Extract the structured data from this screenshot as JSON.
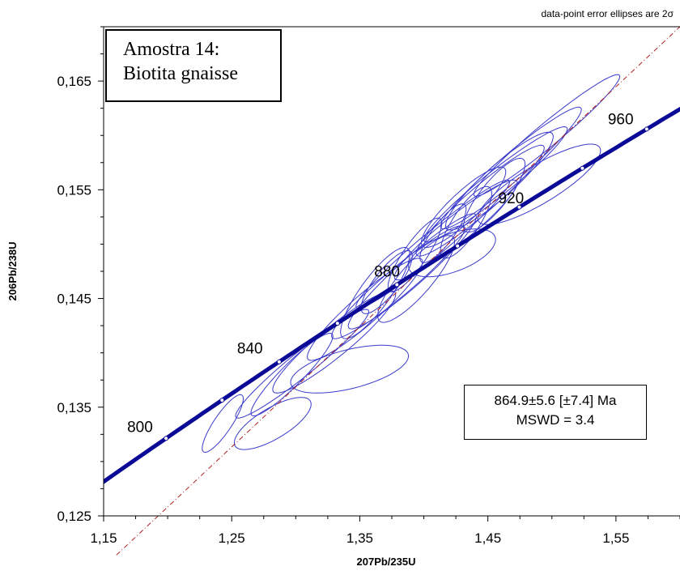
{
  "chart_data": {
    "type": "scatter",
    "subtype": "concordia",
    "note": "data-point error ellipses are 2σ",
    "xlabel": "207Pb/235U",
    "ylabel": "206Pb/238U",
    "xlim": [
      1.15,
      1.6
    ],
    "ylim": [
      0.125,
      0.17
    ],
    "x_ticks": [
      1.15,
      1.25,
      1.35,
      1.45,
      1.55
    ],
    "x_tick_labels": [
      "1,15",
      "1,25",
      "1,35",
      "1,45",
      "1,55"
    ],
    "y_ticks": [
      0.125,
      0.135,
      0.145,
      0.155,
      0.165
    ],
    "y_tick_labels": [
      "0,125",
      "0,135",
      "0,145",
      "0,155",
      "0,165"
    ],
    "sample_title": [
      "Amostra 14:",
      "Biotita gnaisse"
    ],
    "age_result": [
      "864.9±5.6   [±7.4]  Ma",
      "MSWD = 3.4"
    ],
    "concordia_ticks_ma": [
      800,
      820,
      840,
      860,
      880,
      900,
      920,
      940,
      960
    ],
    "concordia_labels_ma": [
      "800",
      "840",
      "880",
      "920",
      "960"
    ],
    "ellipses": [
      {
        "x": 1.243,
        "y": 0.1335,
        "sx": 0.016,
        "sy": 0.00265,
        "rho": 0.86
      },
      {
        "x": 1.282,
        "y": 0.1335,
        "sx": 0.03,
        "sy": 0.0024,
        "rho": 0.74
      },
      {
        "x": 1.297,
        "y": 0.138,
        "sx": 0.032,
        "sy": 0.0038,
        "rho": 0.93
      },
      {
        "x": 1.305,
        "y": 0.139,
        "sx": 0.052,
        "sy": 0.005,
        "rho": 0.96
      },
      {
        "x": 1.33,
        "y": 0.141,
        "sx": 0.048,
        "sy": 0.0047,
        "rho": 0.93
      },
      {
        "x": 1.342,
        "y": 0.1385,
        "sx": 0.046,
        "sy": 0.0022,
        "rho": 0.55
      },
      {
        "x": 1.354,
        "y": 0.144,
        "sx": 0.045,
        "sy": 0.0047,
        "rho": 0.93
      },
      {
        "x": 1.362,
        "y": 0.1455,
        "sx": 0.027,
        "sy": 0.0042,
        "rho": 0.85
      },
      {
        "x": 1.371,
        "y": 0.1465,
        "sx": 0.02,
        "sy": 0.0029,
        "rho": 0.82
      },
      {
        "x": 1.38,
        "y": 0.1465,
        "sx": 0.052,
        "sy": 0.0052,
        "rho": 0.95
      },
      {
        "x": 1.391,
        "y": 0.1475,
        "sx": 0.05,
        "sy": 0.0053,
        "rho": 0.95
      },
      {
        "x": 1.393,
        "y": 0.149,
        "sx": 0.021,
        "sy": 0.0034,
        "rho": 0.86
      },
      {
        "x": 1.394,
        "y": 0.1468,
        "sx": 0.03,
        "sy": 0.004,
        "rho": 0.85
      },
      {
        "x": 1.407,
        "y": 0.15,
        "sx": 0.06,
        "sy": 0.0059,
        "rho": 0.97
      },
      {
        "x": 1.415,
        "y": 0.151,
        "sx": 0.018,
        "sy": 0.0027,
        "rho": 0.83
      },
      {
        "x": 1.425,
        "y": 0.1513,
        "sx": 0.048,
        "sy": 0.0046,
        "rho": 0.94
      },
      {
        "x": 1.431,
        "y": 0.1534,
        "sx": 0.033,
        "sy": 0.0037,
        "rho": 0.88
      },
      {
        "x": 1.433,
        "y": 0.152,
        "sx": 0.02,
        "sy": 0.0033,
        "rho": 0.8
      },
      {
        "x": 1.444,
        "y": 0.154,
        "sx": 0.05,
        "sy": 0.0051,
        "rho": 0.95
      },
      {
        "x": 1.455,
        "y": 0.1545,
        "sx": 0.024,
        "sy": 0.0034,
        "rho": 0.84
      },
      {
        "x": 1.456,
        "y": 0.1555,
        "sx": 0.056,
        "sy": 0.0053,
        "rho": 0.96
      },
      {
        "x": 1.459,
        "y": 0.1558,
        "sx": 0.042,
        "sy": 0.0045,
        "rho": 0.91
      },
      {
        "x": 1.468,
        "y": 0.157,
        "sx": 0.055,
        "sy": 0.0056,
        "rho": 0.96
      },
      {
        "x": 1.49,
        "y": 0.1555,
        "sx": 0.048,
        "sy": 0.0037,
        "rho": 0.84
      },
      {
        "x": 1.496,
        "y": 0.16,
        "sx": 0.057,
        "sy": 0.0056,
        "rho": 0.97
      },
      {
        "x": 1.422,
        "y": 0.1492,
        "sx": 0.034,
        "sy": 0.0022,
        "rho": 0.55
      }
    ],
    "colors": {
      "ellipse": "#3a3acc",
      "concordia": "#0a0a96",
      "discordia": "#b02020",
      "axis": "#000000"
    }
  }
}
